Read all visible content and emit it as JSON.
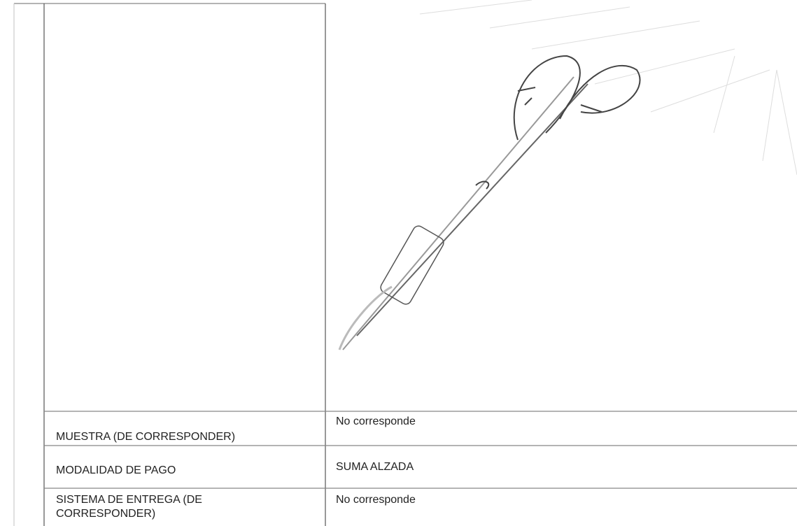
{
  "table": {
    "rows": [
      [
        "MUESTRA (DE CORRESPONDER)",
        "No corresponde"
      ],
      [
        "MODALIDAD DE PAGO",
        "SUMA ALZADA"
      ],
      [
        "SISTEMA DE ENTREGA (DE CORRESPONDER)",
        "No corresponde"
      ]
    ]
  }
}
